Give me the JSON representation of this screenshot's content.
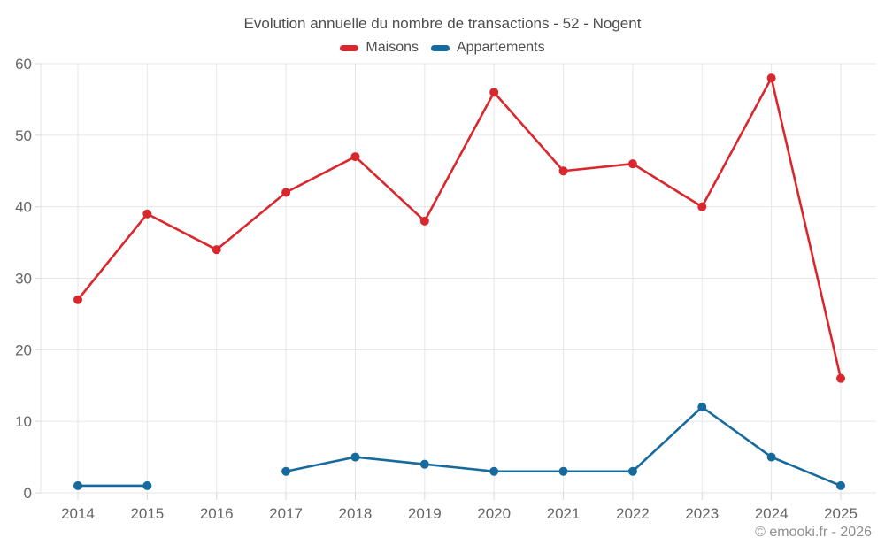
{
  "chart_data": {
    "type": "line",
    "title": "Evolution annuelle du nombre de transactions - 52 - Nogent",
    "categories": [
      "2014",
      "2015",
      "2016",
      "2017",
      "2018",
      "2019",
      "2020",
      "2021",
      "2022",
      "2023",
      "2024",
      "2025"
    ],
    "series": [
      {
        "name": "Maisons",
        "color": "#d9282d",
        "values": [
          27,
          39,
          34,
          42,
          47,
          38,
          56,
          45,
          46,
          40,
          58,
          16
        ]
      },
      {
        "name": "Appartements",
        "color": "#176a9e",
        "values": [
          1,
          1,
          null,
          3,
          5,
          4,
          3,
          3,
          3,
          12,
          5,
          1
        ]
      }
    ],
    "xlabel": "",
    "ylabel": "",
    "ylim": [
      0,
      60
    ],
    "y_ticks": [
      0,
      10,
      20,
      30,
      40,
      50,
      60
    ],
    "grid": true,
    "legend_position": "top",
    "gridline_color": "#e6e6e6",
    "tick_color": "#d8d8d8",
    "axis_label_color": "#666666"
  },
  "footer": {
    "copyright": "© emooki.fr - 2026"
  }
}
